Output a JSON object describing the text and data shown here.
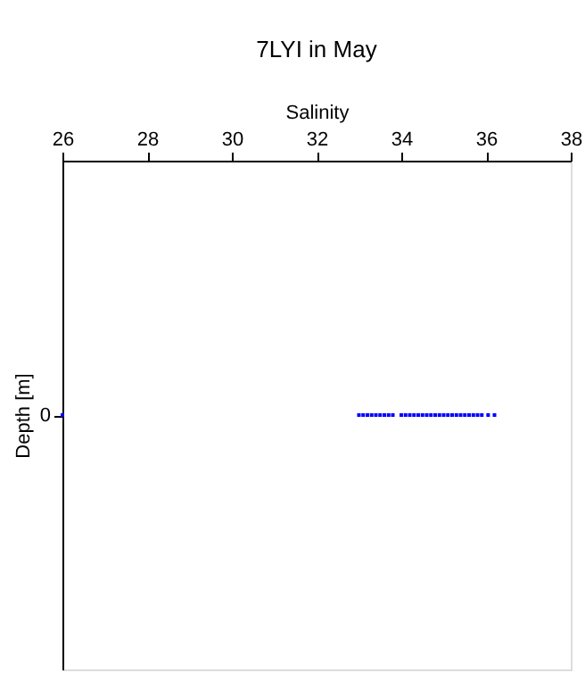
{
  "chart_data": {
    "type": "scatter",
    "orientation": "horizontal",
    "title": "7LYI in May",
    "xlabel": "Salinity",
    "ylabel": "Depth [m]",
    "categories": [
      "0"
    ],
    "series": [
      {
        "color": "#0000ff",
        "x": [
          "0",
          "0",
          "0",
          "0",
          "0",
          "0",
          "0",
          "0",
          "0",
          "0",
          "0",
          "0",
          "0",
          "0",
          "0",
          "0",
          "0",
          "0",
          "0",
          "0",
          "0",
          "0",
          "0",
          "0",
          "0",
          "0",
          "0",
          "0",
          "0",
          "0",
          "0",
          "0"
        ],
        "values": [
          26.0,
          33.0,
          33.1,
          33.2,
          33.3,
          33.4,
          33.5,
          33.6,
          33.7,
          33.8,
          34.0,
          34.1,
          34.2,
          34.3,
          34.4,
          34.5,
          34.6,
          34.7,
          34.8,
          34.9,
          35.0,
          35.1,
          35.2,
          35.3,
          35.4,
          35.5,
          35.6,
          35.7,
          35.8,
          35.9,
          36.05,
          36.2
        ]
      }
    ],
    "xlim": [
      26,
      38
    ],
    "xticks": [
      26,
      28,
      30,
      32,
      34,
      36,
      38
    ],
    "grid": false,
    "legend": false,
    "marker": "square"
  }
}
